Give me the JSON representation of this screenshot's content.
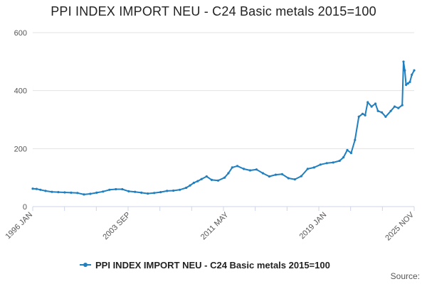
{
  "chart_data": {
    "type": "line",
    "title": "PPI INDEX IMPORT NEU - C24 Basic metals 2015=100",
    "xlabel": "",
    "ylabel": "",
    "ylim": [
      0,
      600
    ],
    "y_ticks": [
      "0",
      "200",
      "400",
      "600"
    ],
    "x_ticks": [
      {
        "label": "1996 JAN",
        "t": 1996.0
      },
      {
        "label": "2003 SEP",
        "t": 2003.667
      },
      {
        "label": "2011 MAY",
        "t": 2011.333
      },
      {
        "label": "2019 JAN",
        "t": 2019.0
      },
      {
        "label": "2025 NOV",
        "t": 2025.833
      }
    ],
    "x_range": [
      1996.0,
      2025.833
    ],
    "gridlines": true,
    "legend_position": "bottom-center",
    "series": [
      {
        "name": "PPI INDEX IMPORT NEU - C24 Basic metals 2015=100",
        "color": "#1f7fbf",
        "x": [
          1996.0,
          1996.3,
          1996.6,
          1997.0,
          1997.5,
          1998.0,
          1998.5,
          1999.0,
          1999.5,
          2000.0,
          2000.5,
          2001.0,
          2001.5,
          2002.0,
          2002.5,
          2003.0,
          2003.5,
          2004.0,
          2004.5,
          2005.0,
          2005.5,
          2006.0,
          2006.5,
          2007.0,
          2007.5,
          2008.0,
          2008.3,
          2008.6,
          2008.9,
          2009.2,
          2009.6,
          2010.0,
          2010.5,
          2011.0,
          2011.3,
          2011.6,
          2012.0,
          2012.5,
          2013.0,
          2013.5,
          2014.0,
          2014.5,
          2015.0,
          2015.5,
          2016.0,
          2016.5,
          2017.0,
          2017.5,
          2018.0,
          2018.5,
          2019.0,
          2019.5,
          2020.0,
          2020.3,
          2020.6,
          2020.9,
          2021.2,
          2021.5,
          2021.8,
          2022.0,
          2022.2,
          2022.5,
          2022.8,
          2023.0,
          2023.3,
          2023.6,
          2024.0,
          2024.3,
          2024.6,
          2024.9,
          2025.0,
          2025.1,
          2025.2,
          2025.35,
          2025.5,
          2025.65,
          2025.833
        ],
        "values": [
          62,
          61,
          58,
          54,
          51,
          50,
          49,
          48,
          47,
          42,
          44,
          48,
          52,
          58,
          60,
          60,
          53,
          51,
          48,
          45,
          47,
          50,
          54,
          55,
          58,
          65,
          73,
          82,
          88,
          95,
          104,
          92,
          90,
          100,
          115,
          135,
          140,
          130,
          125,
          128,
          115,
          104,
          110,
          112,
          98,
          94,
          105,
          130,
          135,
          145,
          150,
          152,
          158,
          170,
          195,
          185,
          230,
          310,
          320,
          315,
          360,
          345,
          355,
          330,
          325,
          310,
          330,
          345,
          340,
          350,
          500,
          470,
          420,
          425,
          430,
          455,
          470
        ]
      }
    ]
  },
  "footer": {
    "source_label": "Source:"
  }
}
